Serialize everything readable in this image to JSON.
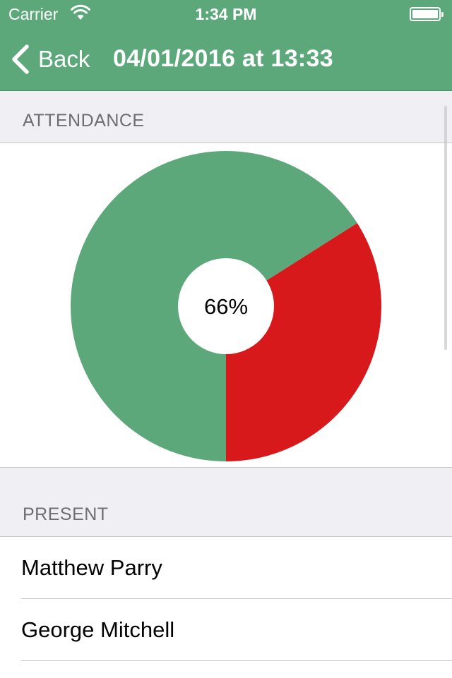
{
  "status_bar": {
    "carrier": "Carrier",
    "time": "1:34 PM"
  },
  "nav": {
    "back_label": "Back",
    "title": "04/01/2016 at 13:33"
  },
  "sections": {
    "attendance_header": "ATTENDANCE",
    "present_header": "PRESENT"
  },
  "chart_data": {
    "type": "pie",
    "center_label": "66%",
    "slices": [
      {
        "value": 66,
        "color": "#5da87b"
      },
      {
        "value": 34,
        "color": "#d8191b"
      }
    ]
  },
  "present": [
    {
      "name": "Matthew Parry"
    },
    {
      "name": "George Mitchell"
    }
  ],
  "colors": {
    "accent": "#5da87b",
    "absent": "#d8191b"
  }
}
